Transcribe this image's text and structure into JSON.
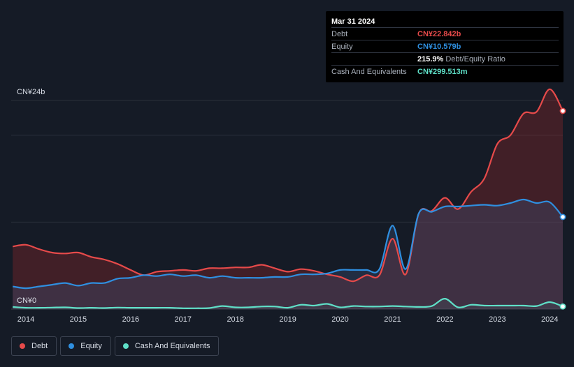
{
  "tooltip": {
    "date": "Mar 31 2024",
    "rows": [
      {
        "label": "Debt",
        "value": "CN¥22.842b",
        "color": "#e64a4a"
      },
      {
        "label": "Equity",
        "value": "CN¥10.579b",
        "color": "#2f8fe0"
      },
      {
        "label": "",
        "value": "215.9%",
        "suffix": "Debt/Equity Ratio",
        "color": "#ffffff"
      },
      {
        "label": "Cash And Equivalents",
        "value": "CN¥299.513m",
        "color": "#5fe0c8"
      }
    ]
  },
  "legend": [
    {
      "label": "Debt",
      "color": "#e64a4a"
    },
    {
      "label": "Equity",
      "color": "#2f8fe0"
    },
    {
      "label": "Cash And Equivalents",
      "color": "#5fe0c8"
    }
  ],
  "chart_data": {
    "type": "area",
    "ylim": [
      0,
      24
    ],
    "y_unit": "CN¥ billions",
    "y_tick_labels": [
      {
        "value": 24,
        "label": "CN¥24b"
      },
      {
        "value": 0,
        "label": "CN¥0"
      }
    ],
    "xlim": [
      2013.72,
      2024.25
    ],
    "x_ticks": [
      2014,
      2015,
      2016,
      2017,
      2018,
      2019,
      2020,
      2021,
      2022,
      2023,
      2024
    ],
    "grid": true,
    "legend_position": "bottom-left",
    "series": [
      {
        "name": "Debt",
        "color": "#e64a4a",
        "x": [
          2013.75,
          2014.0,
          2014.25,
          2014.5,
          2014.75,
          2015.0,
          2015.25,
          2015.5,
          2015.75,
          2016.0,
          2016.25,
          2016.5,
          2016.75,
          2017.0,
          2017.25,
          2017.5,
          2017.75,
          2018.0,
          2018.25,
          2018.5,
          2018.75,
          2019.0,
          2019.25,
          2019.5,
          2019.75,
          2020.0,
          2020.25,
          2020.5,
          2020.75,
          2021.0,
          2021.25,
          2021.5,
          2021.75,
          2022.0,
          2022.25,
          2022.5,
          2022.75,
          2023.0,
          2023.25,
          2023.5,
          2023.75,
          2024.0,
          2024.25
        ],
        "values": [
          7.2,
          7.4,
          6.9,
          6.5,
          6.4,
          6.5,
          6.0,
          5.7,
          5.2,
          4.5,
          3.9,
          4.3,
          4.4,
          4.5,
          4.4,
          4.7,
          4.7,
          4.8,
          4.8,
          5.1,
          4.7,
          4.3,
          4.6,
          4.4,
          4.0,
          3.7,
          3.2,
          3.9,
          3.9,
          8.1,
          4.0,
          11.0,
          11.3,
          12.8,
          11.5,
          13.5,
          15.0,
          19.0,
          20.0,
          22.5,
          22.7,
          25.3,
          22.8
        ]
      },
      {
        "name": "Equity",
        "color": "#2f8fe0",
        "x": [
          2013.75,
          2014.0,
          2014.25,
          2014.5,
          2014.75,
          2015.0,
          2015.25,
          2015.5,
          2015.75,
          2016.0,
          2016.25,
          2016.5,
          2016.75,
          2017.0,
          2017.25,
          2017.5,
          2017.75,
          2018.0,
          2018.25,
          2018.5,
          2018.75,
          2019.0,
          2019.25,
          2019.5,
          2019.75,
          2020.0,
          2020.25,
          2020.5,
          2020.75,
          2021.0,
          2021.25,
          2021.5,
          2021.75,
          2022.0,
          2022.25,
          2022.5,
          2022.75,
          2023.0,
          2023.25,
          2023.5,
          2023.75,
          2024.0,
          2024.25
        ],
        "values": [
          2.6,
          2.4,
          2.6,
          2.8,
          3.0,
          2.7,
          3.0,
          3.0,
          3.5,
          3.6,
          3.9,
          3.8,
          4.0,
          3.8,
          3.9,
          3.6,
          3.8,
          3.6,
          3.6,
          3.6,
          3.7,
          3.7,
          4.0,
          4.0,
          4.1,
          4.5,
          4.5,
          4.5,
          4.6,
          9.6,
          4.6,
          11.0,
          11.2,
          11.8,
          11.8,
          11.9,
          12.0,
          11.9,
          12.2,
          12.6,
          12.2,
          12.3,
          10.6
        ]
      },
      {
        "name": "Cash And Equivalents",
        "color": "#5fe0c8",
        "x": [
          2013.75,
          2014.0,
          2014.25,
          2014.5,
          2014.75,
          2015.0,
          2015.25,
          2015.5,
          2015.75,
          2016.0,
          2016.25,
          2016.5,
          2016.75,
          2017.0,
          2017.25,
          2017.5,
          2017.75,
          2018.0,
          2018.25,
          2018.5,
          2018.75,
          2019.0,
          2019.25,
          2019.5,
          2019.75,
          2020.0,
          2020.25,
          2020.5,
          2020.75,
          2021.0,
          2021.25,
          2021.5,
          2021.75,
          2022.0,
          2022.25,
          2022.5,
          2022.75,
          2023.0,
          2023.25,
          2023.5,
          2023.75,
          2024.0,
          2024.25
        ],
        "values": [
          0.25,
          0.15,
          0.15,
          0.18,
          0.2,
          0.12,
          0.15,
          0.12,
          0.18,
          0.15,
          0.15,
          0.15,
          0.15,
          0.1,
          0.1,
          0.12,
          0.35,
          0.2,
          0.2,
          0.3,
          0.3,
          0.15,
          0.5,
          0.4,
          0.6,
          0.2,
          0.35,
          0.3,
          0.3,
          0.35,
          0.3,
          0.25,
          0.35,
          1.2,
          0.2,
          0.5,
          0.4,
          0.4,
          0.4,
          0.4,
          0.35,
          0.8,
          0.3
        ]
      }
    ]
  }
}
